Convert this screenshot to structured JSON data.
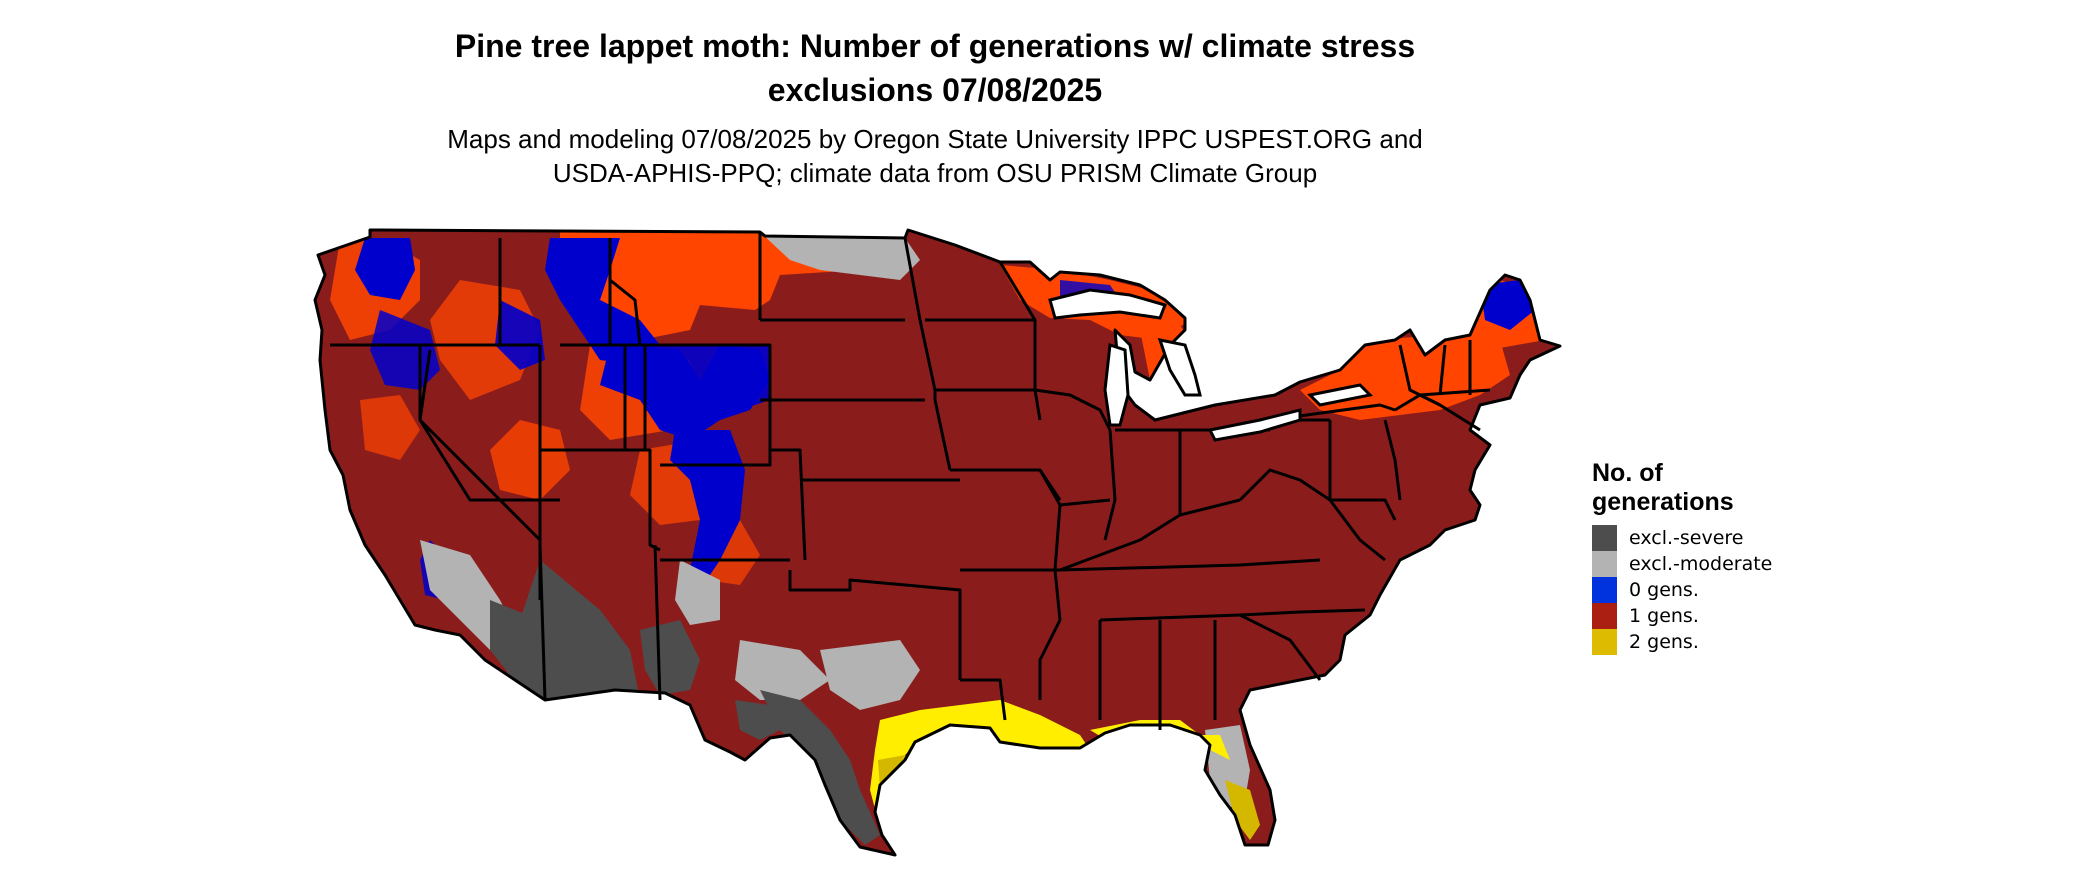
{
  "title": {
    "line1": "Pine tree lappet moth: Number of generations w/ climate stress",
    "line2": "exclusions 07/08/2025"
  },
  "subtitle": {
    "line1": "Maps and modeling 07/08/2025 by Oregon State University IPPC USPEST.ORG and",
    "line2": "USDA-APHIS-PPQ; climate data from OSU PRISM Climate Group"
  },
  "legend": {
    "title_line1": "No. of",
    "title_line2": "generations",
    "items": [
      {
        "label": "excl.-severe",
        "color": "#4d4d4d"
      },
      {
        "label": "excl.-moderate",
        "color": "#b3b3b3"
      },
      {
        "label": "0 gens.",
        "color": "#0033dd"
      },
      {
        "label": "1 gens.",
        "color": "#aa1f12"
      },
      {
        "label": "2 gens.",
        "color": "#ddbb00"
      }
    ]
  },
  "map_colors": {
    "base_dark_red": "#8b1c1c",
    "bright_orange_red": "#ff4500",
    "zero_gens_blue": "#0000cc",
    "excl_severe": "#4d4d4d",
    "excl_moderate": "#b3b3b3",
    "two_gens_yellow": "#ffee00",
    "two_gens_ochre": "#d4b800",
    "state_border": "#000000"
  }
}
